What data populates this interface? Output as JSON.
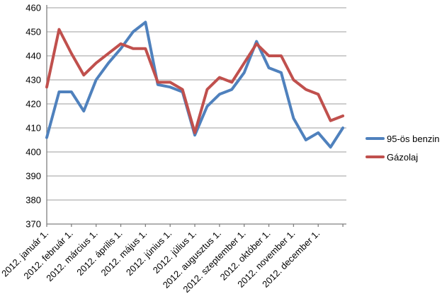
{
  "chart_data": {
    "type": "line",
    "title": "",
    "xlabel": "",
    "ylabel": "",
    "ylim": [
      370,
      460
    ],
    "y_ticks": [
      370,
      380,
      390,
      400,
      410,
      420,
      430,
      440,
      450,
      460
    ],
    "x_tick_labels": [
      "2012. január 1.",
      "2012. február 1.",
      "2012. március 1.",
      "2012. április 1.",
      "2012. május 1.",
      "2012. június 1.",
      "2012. július 1.",
      "2012. augusztus 1.",
      "2012. szeptember 1.",
      "2012. október 1.",
      "2012. november 1.",
      "2012. december 1."
    ],
    "points_per_month_label": 2,
    "grid": "horizontal-only",
    "legend_position": "right",
    "axis_color": "#808080",
    "gridline_color": "#9c9c9c",
    "text_color": "#000000",
    "series": [
      {
        "name": "95-ös benzin",
        "color": "#4F81BD",
        "values": [
          406,
          425,
          425,
          417,
          430,
          437,
          443,
          450,
          454,
          428,
          427,
          425,
          407,
          419,
          424,
          426,
          433,
          446,
          435,
          433,
          414,
          405,
          408,
          402,
          410
        ]
      },
      {
        "name": "Gázolaj",
        "color": "#C0504D",
        "values": [
          427,
          451,
          441,
          432,
          437,
          441,
          445,
          443,
          443,
          429,
          429,
          426,
          408,
          426,
          431,
          429,
          437,
          445,
          440,
          440,
          430,
          426,
          424,
          413,
          415
        ]
      }
    ]
  }
}
